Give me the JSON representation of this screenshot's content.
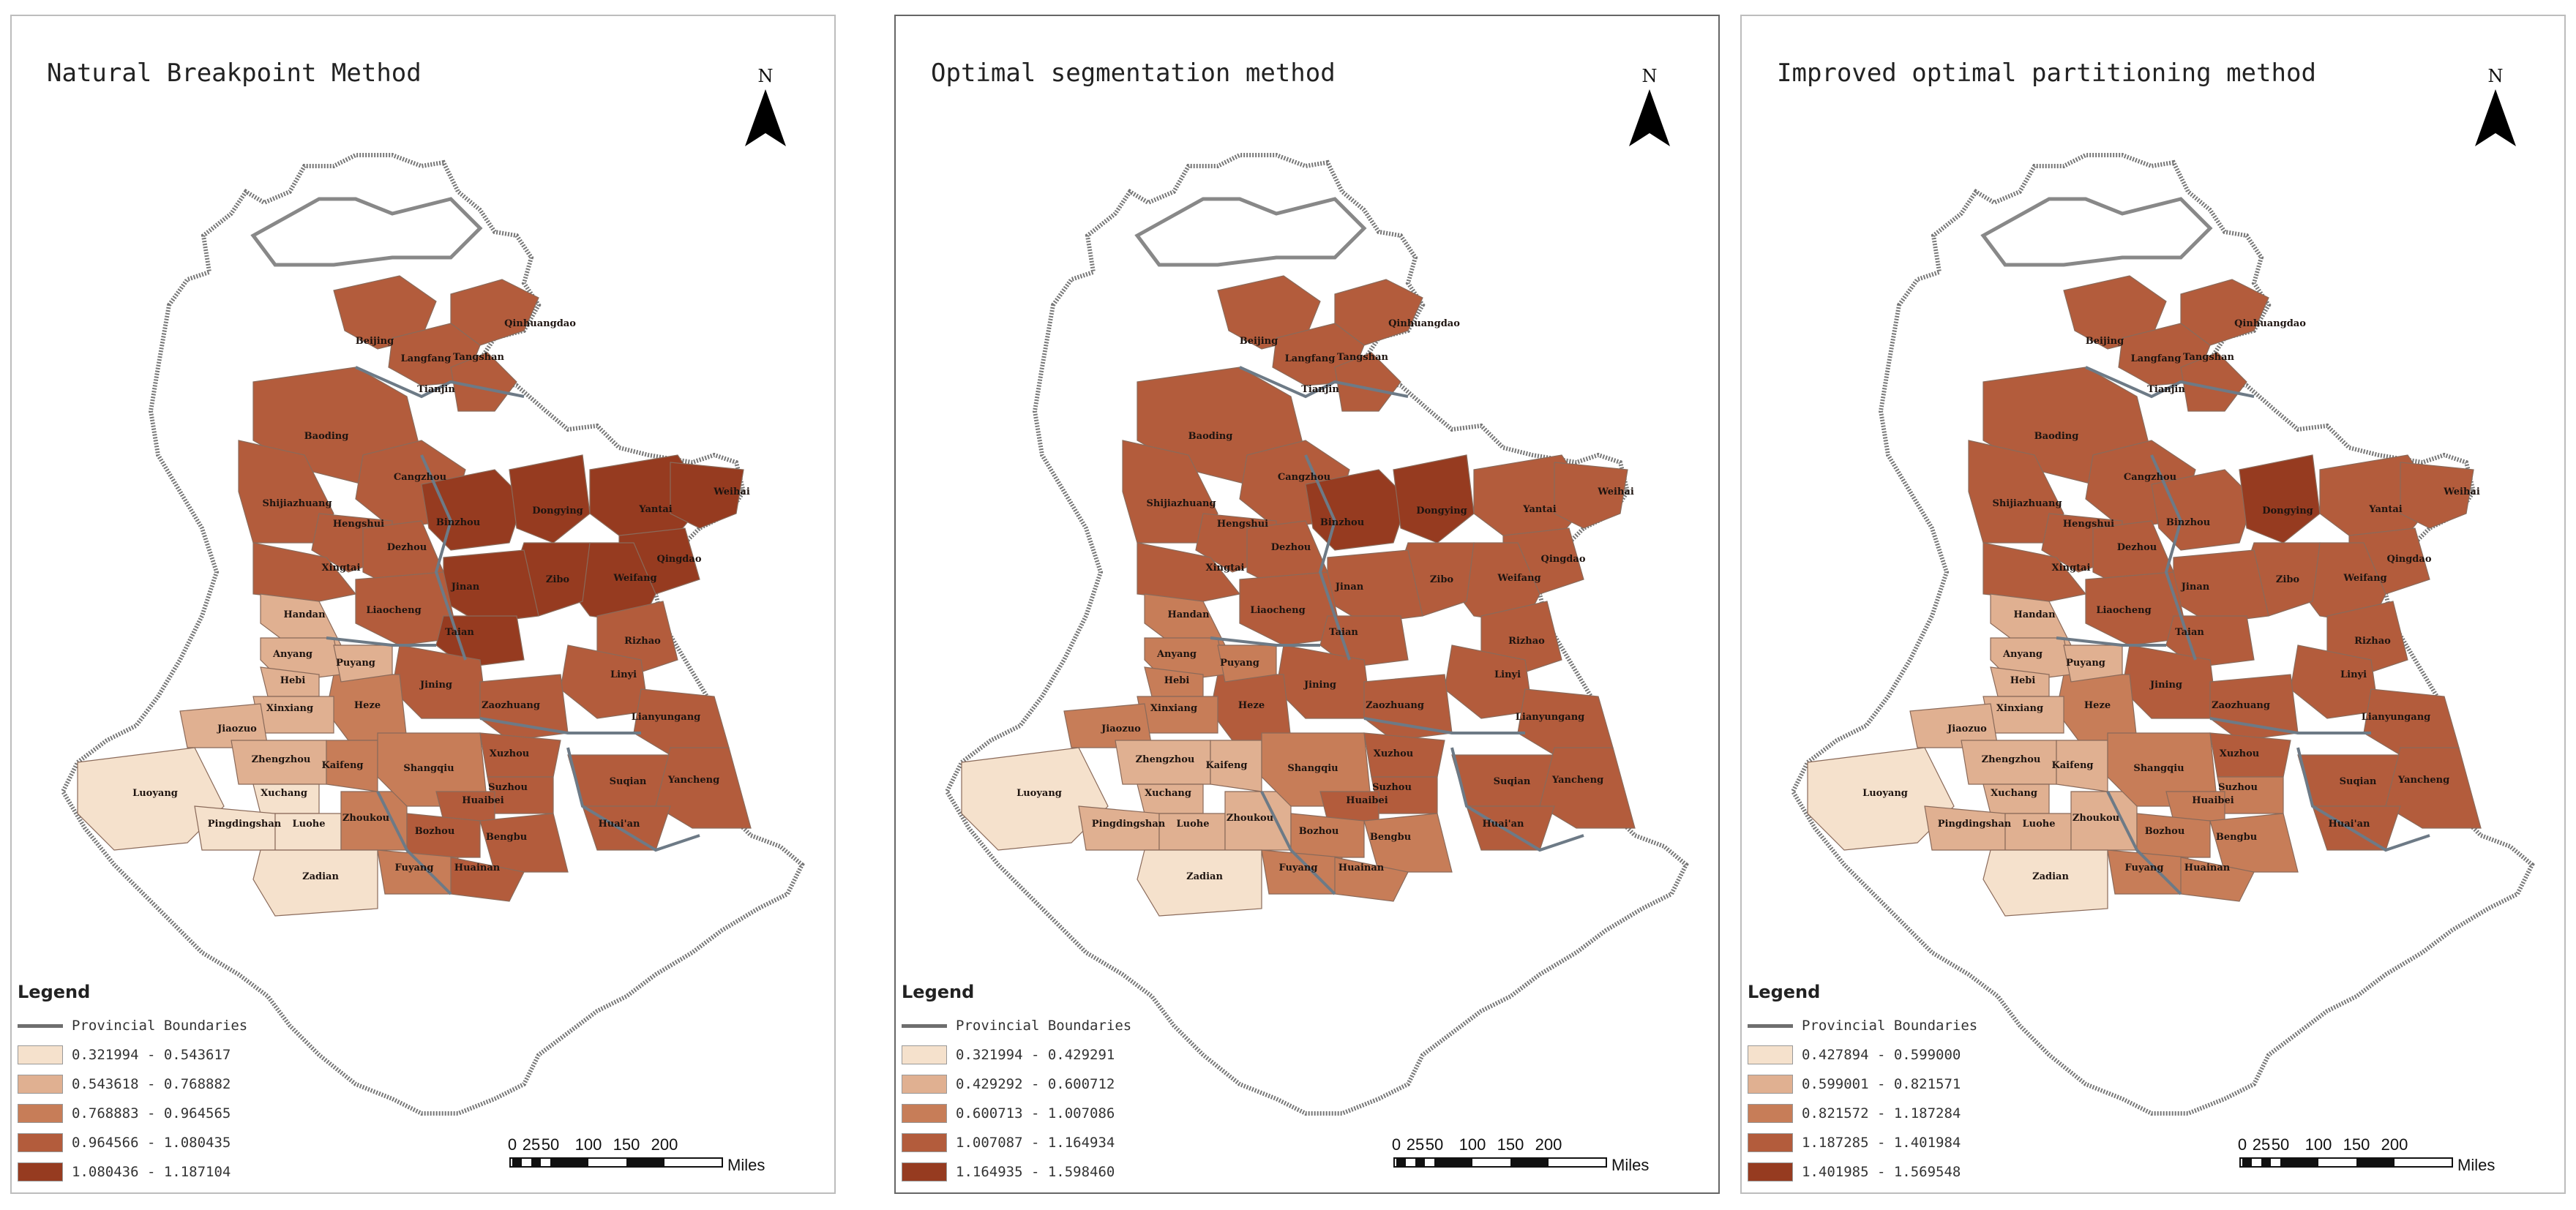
{
  "panels": [
    {
      "title": "Natural Breakpoint Method",
      "north": "N",
      "legend_title": "Legend",
      "boundary_label": "Provincial Boundaries",
      "classes": [
        {
          "label": "0.321994 - 0.543617",
          "color": "#f5e1cc"
        },
        {
          "label": "0.543618 - 0.768882",
          "color": "#e0b091"
        },
        {
          "label": "0.768883 - 0.964565",
          "color": "#c77d58"
        },
        {
          "label": "0.964566 - 1.080435",
          "color": "#b35c3c"
        },
        {
          "label": "1.080436 - 1.187104",
          "color": "#963b20"
        }
      ]
    },
    {
      "title": "Optimal segmentation method",
      "north": "N",
      "legend_title": "Legend",
      "boundary_label": "Provincial Boundaries",
      "classes": [
        {
          "label": "0.321994 - 0.429291",
          "color": "#f5e1cc"
        },
        {
          "label": "0.429292 - 0.600712",
          "color": "#e0b091"
        },
        {
          "label": "0.600713 - 1.007086",
          "color": "#c77d58"
        },
        {
          "label": "1.007087 - 1.164934",
          "color": "#b35c3c"
        },
        {
          "label": "1.164935 - 1.598460",
          "color": "#963b20"
        }
      ]
    },
    {
      "title": "Improved optimal partitioning method",
      "north": "N",
      "legend_title": "Legend",
      "boundary_label": "Provincial Boundaries",
      "classes": [
        {
          "label": "0.427894 - 0.599000",
          "color": "#f5e1cc"
        },
        {
          "label": "0.599001 - 0.821571",
          "color": "#e0b091"
        },
        {
          "label": "0.821572 - 1.187284",
          "color": "#c77d58"
        },
        {
          "label": "1.187285 - 1.401984",
          "color": "#b35c3c"
        },
        {
          "label": "1.401985 - 1.569548",
          "color": "#963b20"
        }
      ]
    }
  ],
  "scale": {
    "ticks": [
      "0",
      "25",
      "50",
      "100",
      "150",
      "200"
    ],
    "unit": "Miles"
  },
  "cities": [
    "Beijing",
    "Qinhuangdao",
    "Langfang",
    "Tangshan",
    "Tianjin",
    "Baoding",
    "Cangzhou",
    "Shijiazhuang",
    "Hengshui",
    "Xingtai",
    "Handan",
    "Dezhou",
    "Binzhou",
    "Dongying",
    "Yantai",
    "Weihai",
    "Qingdao",
    "Weifang",
    "Zibo",
    "Jinan",
    "Liaocheng",
    "Taian",
    "Rizhao",
    "Linyi",
    "Jining",
    "Heze",
    "Zaozhuang",
    "Lianyungang",
    "Anyang",
    "Puyang",
    "Hebi",
    "Xinxiang",
    "Jiaozuo",
    "Zhengzhou",
    "Kaifeng",
    "Luoyang",
    "Xuchang",
    "Pingdingshan",
    "Luohe",
    "Zhoukou",
    "Zadian",
    "Shangqiu",
    "Xuzhou",
    "Suzhou",
    "Huaibei",
    "Suqian",
    "Yancheng",
    "Huai'an",
    "Bozhou",
    "Bengbu",
    "Fuyang",
    "Huainan"
  ]
}
